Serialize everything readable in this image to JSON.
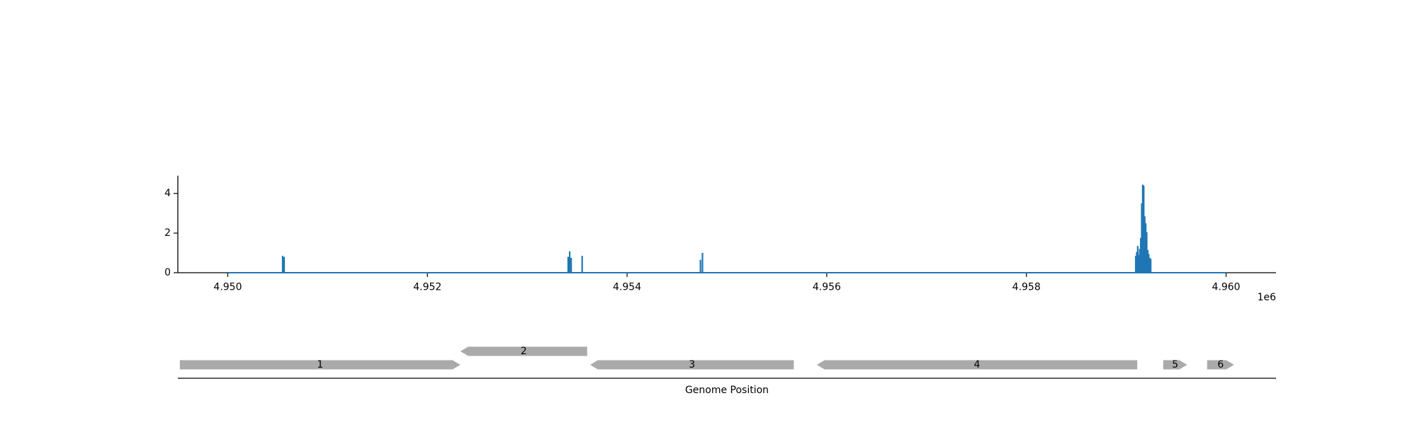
{
  "chart_data": {
    "type": "line",
    "title": "",
    "ylabel": "",
    "xlabel": "Genome Position",
    "x_offset_label": "1e6",
    "xlim": [
      4.9495,
      4.9605
    ],
    "ylim": [
      0,
      4.9
    ],
    "x_ticks": [
      {
        "value": 4.95,
        "label": "4.950"
      },
      {
        "value": 4.952,
        "label": "4.952"
      },
      {
        "value": 4.954,
        "label": "4.954"
      },
      {
        "value": 4.956,
        "label": "4.956"
      },
      {
        "value": 4.958,
        "label": "4.958"
      },
      {
        "value": 4.96,
        "label": "4.960"
      }
    ],
    "y_ticks": [
      {
        "value": 0,
        "label": "0"
      },
      {
        "value": 2,
        "label": "2"
      },
      {
        "value": 4,
        "label": "4"
      }
    ],
    "series_color": "#1f77b4",
    "baseline": {
      "x": [
        4.95,
        4.96
      ],
      "y": 0
    },
    "peaks": [
      {
        "x": 4.95055,
        "y": 0.85
      },
      {
        "x": 4.950565,
        "y": 0.8
      },
      {
        "x": 4.95341,
        "y": 0.8
      },
      {
        "x": 4.953425,
        "y": 1.08
      },
      {
        "x": 4.95344,
        "y": 0.75
      },
      {
        "x": 4.95355,
        "y": 0.85
      },
      {
        "x": 4.954735,
        "y": 0.65
      },
      {
        "x": 4.954755,
        "y": 1.0
      },
      {
        "x": 4.959095,
        "y": 0.85
      },
      {
        "x": 4.959105,
        "y": 1.05
      },
      {
        "x": 4.959115,
        "y": 1.35
      },
      {
        "x": 4.959125,
        "y": 0.9
      },
      {
        "x": 4.959135,
        "y": 1.2
      },
      {
        "x": 4.959145,
        "y": 1.75
      },
      {
        "x": 4.959155,
        "y": 3.5
      },
      {
        "x": 4.959165,
        "y": 4.45
      },
      {
        "x": 4.959175,
        "y": 4.4
      },
      {
        "x": 4.959185,
        "y": 2.85
      },
      {
        "x": 4.959195,
        "y": 2.5
      },
      {
        "x": 4.959205,
        "y": 2.05
      },
      {
        "x": 4.959215,
        "y": 1.15
      },
      {
        "x": 4.959225,
        "y": 0.95
      },
      {
        "x": 4.959235,
        "y": 0.75
      },
      {
        "x": 4.959245,
        "y": 0.7
      }
    ],
    "genes": [
      {
        "label": "1",
        "start": 4.94952,
        "end": 4.95233,
        "strand": "+",
        "row": 0,
        "color": "#aaaaaa"
      },
      {
        "label": "2",
        "start": 4.95233,
        "end": 4.9536,
        "strand": "-",
        "row": 1,
        "color": "#aaaaaa"
      },
      {
        "label": "3",
        "start": 4.95363,
        "end": 4.95567,
        "strand": "-",
        "row": 0,
        "color": "#aaaaaa"
      },
      {
        "label": "4",
        "start": 4.9559,
        "end": 4.95911,
        "strand": "-",
        "row": 0,
        "color": "#aaaaaa"
      },
      {
        "label": "5",
        "start": 4.95937,
        "end": 4.95961,
        "strand": "+",
        "row": 0,
        "color": "#aaaaaa"
      },
      {
        "label": "6",
        "start": 4.95981,
        "end": 4.96008,
        "strand": "+",
        "row": 0,
        "color": "#aaaaaa"
      }
    ]
  }
}
